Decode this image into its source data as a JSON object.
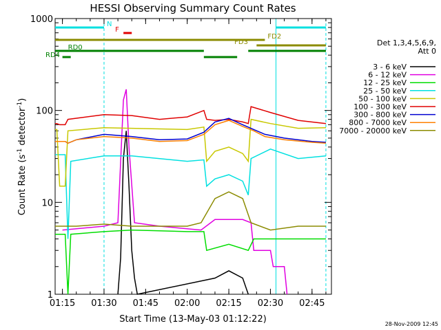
{
  "chart_data": {
    "type": "line",
    "title": "HESSI Observing Summary Count Rates",
    "xlabel": "Start Time (13-May-03 01:12:22)",
    "ylabel_main": "Count Rate (s",
    "ylabel_exp1": "-1",
    "ylabel_mid": " detector",
    "ylabel_exp2": "-1",
    "ylabel_end": ")",
    "yscale": "log",
    "ylim": [
      1,
      1000
    ],
    "xlim": [
      "01:12:22",
      "02:52:00"
    ],
    "x_ticks": [
      "01:15",
      "01:30",
      "01:45",
      "02:00",
      "02:15",
      "02:30",
      "02:45"
    ],
    "y_ticks": [
      "1",
      "10",
      "100",
      "1000"
    ],
    "legend": {
      "placement": "right",
      "header_line1": "Det 1,3,4,5,6,9,",
      "header_line2": "Att 0"
    },
    "series": [
      {
        "name": "3 - 6 keV",
        "color": "#000000",
        "points": [
          [
            "01:35",
            1
          ],
          [
            "01:36",
            2.5
          ],
          [
            "01:37",
            30
          ],
          [
            "01:38",
            60
          ],
          [
            "01:39",
            15
          ],
          [
            "01:40",
            3
          ],
          [
            "01:41",
            1.5
          ],
          [
            "01:42",
            1
          ],
          [
            "02:10",
            1.5
          ],
          [
            "02:15",
            1.8
          ],
          [
            "02:20",
            1.5
          ],
          [
            "02:22",
            1
          ]
        ]
      },
      {
        "name": "6 - 12 keV",
        "color": "#e000e0",
        "points": [
          [
            "01:15",
            5
          ],
          [
            "01:30",
            5.5
          ],
          [
            "01:35",
            6
          ],
          [
            "01:37",
            130
          ],
          [
            "01:38",
            170
          ],
          [
            "01:39",
            40
          ],
          [
            "01:41",
            6
          ],
          [
            "01:50",
            5.5
          ],
          [
            "02:05",
            5
          ],
          [
            "02:10",
            6.5
          ],
          [
            "02:20",
            6.5
          ],
          [
            "02:23",
            6
          ],
          [
            "02:24",
            3
          ],
          [
            "02:30",
            3
          ],
          [
            "02:31",
            2
          ],
          [
            "02:35",
            2
          ],
          [
            "02:36",
            1
          ]
        ]
      },
      {
        "name": "12 - 25 keV",
        "color": "#00dd00",
        "points": [
          [
            "01:12:22",
            4.5
          ],
          [
            "01:16",
            4.5
          ],
          [
            "01:17",
            1
          ],
          [
            "01:18",
            4.5
          ],
          [
            "01:30",
            4.8
          ],
          [
            "01:40",
            5
          ],
          [
            "02:00",
            4.8
          ],
          [
            "02:06",
            4.8
          ],
          [
            "02:07",
            3
          ],
          [
            "02:15",
            3.5
          ],
          [
            "02:22",
            3
          ],
          [
            "02:24",
            4
          ],
          [
            "02:50",
            4
          ]
        ]
      },
      {
        "name": "25 - 50 keV",
        "color": "#00e0e0",
        "points": [
          [
            "01:12:22",
            33
          ],
          [
            "01:16",
            33
          ],
          [
            "01:17",
            4
          ],
          [
            "01:18",
            28
          ],
          [
            "01:30",
            32
          ],
          [
            "01:40",
            32
          ],
          [
            "02:00",
            28
          ],
          [
            "02:06",
            29
          ],
          [
            "02:07",
            15
          ],
          [
            "02:10",
            18
          ],
          [
            "02:15",
            20
          ],
          [
            "02:20",
            17
          ],
          [
            "02:22",
            12
          ],
          [
            "02:23",
            30
          ],
          [
            "02:30",
            38
          ],
          [
            "02:40",
            30
          ],
          [
            "02:50",
            32
          ]
        ]
      },
      {
        "name": "50 - 100 keV",
        "color": "#c8c800",
        "points": [
          [
            "01:12:22",
            62
          ],
          [
            "01:13",
            62
          ],
          [
            "01:14",
            15
          ],
          [
            "01:16",
            15
          ],
          [
            "01:17",
            60
          ],
          [
            "01:30",
            65
          ],
          [
            "01:40",
            64
          ],
          [
            "02:00",
            62
          ],
          [
            "02:06",
            66
          ],
          [
            "02:07",
            28
          ],
          [
            "02:10",
            36
          ],
          [
            "02:15",
            40
          ],
          [
            "02:20",
            34
          ],
          [
            "02:22",
            28
          ],
          [
            "02:23",
            80
          ],
          [
            "02:30",
            72
          ],
          [
            "02:40",
            64
          ],
          [
            "02:50",
            65
          ]
        ]
      },
      {
        "name": "100 - 300 keV",
        "color": "#e00000",
        "points": [
          [
            "01:12:22",
            72
          ],
          [
            "01:13",
            72
          ],
          [
            "01:14",
            70
          ],
          [
            "01:16",
            70
          ],
          [
            "01:17",
            80
          ],
          [
            "01:30",
            90
          ],
          [
            "01:40",
            88
          ],
          [
            "01:50",
            80
          ],
          [
            "02:00",
            85
          ],
          [
            "02:06",
            100
          ],
          [
            "02:07",
            80
          ],
          [
            "02:10",
            78
          ],
          [
            "02:15",
            80
          ],
          [
            "02:20",
            75
          ],
          [
            "02:22",
            72
          ],
          [
            "02:23",
            110
          ],
          [
            "02:30",
            95
          ],
          [
            "02:40",
            78
          ],
          [
            "02:50",
            72
          ]
        ]
      },
      {
        "name": "300 - 800 keV",
        "color": "#0000d0",
        "points": [
          [
            "01:12:22",
            46
          ],
          [
            "01:16",
            46
          ],
          [
            "01:17",
            44
          ],
          [
            "01:20",
            48
          ],
          [
            "01:30",
            55
          ],
          [
            "01:40",
            52
          ],
          [
            "01:50",
            48
          ],
          [
            "02:00",
            49
          ],
          [
            "02:06",
            58
          ],
          [
            "02:10",
            75
          ],
          [
            "02:15",
            82
          ],
          [
            "02:20",
            70
          ],
          [
            "02:24",
            62
          ],
          [
            "02:28",
            55
          ],
          [
            "02:35",
            50
          ],
          [
            "02:45",
            46
          ],
          [
            "02:50",
            45
          ]
        ]
      },
      {
        "name": "800 - 7000 keV",
        "color": "#ff8000",
        "points": [
          [
            "01:12:22",
            46
          ],
          [
            "01:16",
            46
          ],
          [
            "01:17",
            44
          ],
          [
            "01:20",
            48
          ],
          [
            "01:30",
            52
          ],
          [
            "01:40",
            50
          ],
          [
            "01:50",
            46
          ],
          [
            "02:00",
            47
          ],
          [
            "02:06",
            55
          ],
          [
            "02:10",
            70
          ],
          [
            "02:15",
            78
          ],
          [
            "02:20",
            67
          ],
          [
            "02:24",
            60
          ],
          [
            "02:28",
            52
          ],
          [
            "02:35",
            48
          ],
          [
            "02:45",
            45
          ],
          [
            "02:50",
            44
          ]
        ]
      },
      {
        "name": "7000 - 20000 keV",
        "color": "#8b8b00",
        "points": [
          [
            "01:12:22",
            5.5
          ],
          [
            "01:20",
            5.5
          ],
          [
            "01:30",
            5.8
          ],
          [
            "01:40",
            5.5
          ],
          [
            "01:50",
            5.5
          ],
          [
            "02:00",
            5.5
          ],
          [
            "02:05",
            6
          ],
          [
            "02:10",
            11
          ],
          [
            "02:15",
            13
          ],
          [
            "02:20",
            11
          ],
          [
            "02:23",
            6
          ],
          [
            "02:30",
            5
          ],
          [
            "02:40",
            5.5
          ],
          [
            "02:50",
            5.5
          ]
        ]
      }
    ],
    "flag_bars": [
      {
        "name": "N",
        "color": "#00e0e0",
        "segments": [
          [
            "01:12:22",
            "01:30"
          ],
          [
            "02:32",
            "02:50"
          ]
        ]
      },
      {
        "name": "F",
        "color": "#e00000",
        "segments": [
          [
            "01:37",
            "01:40"
          ]
        ]
      },
      {
        "name": "FD2",
        "color": "#8b8b00",
        "segments": [
          [
            "01:12:22",
            "02:28"
          ]
        ]
      },
      {
        "name": "FD3",
        "color": "#8b8b00",
        "segments": [
          [
            "02:25",
            "02:50"
          ]
        ]
      },
      {
        "name": "RD0",
        "color": "#008000",
        "segments": [
          [
            "01:12:22",
            "02:06"
          ],
          [
            "02:22",
            "02:50"
          ]
        ]
      },
      {
        "name": "RD4",
        "color": "#008000",
        "segments": [
          [
            "01:15",
            "01:18"
          ],
          [
            "02:06",
            "02:18"
          ]
        ]
      }
    ],
    "vlines_solid": [
      "01:12:22",
      "02:32"
    ],
    "vlines_dashed": [
      "01:30",
      "02:50"
    ]
  },
  "footer": {
    "timestamp": "28-Nov-2009 12:45"
  }
}
